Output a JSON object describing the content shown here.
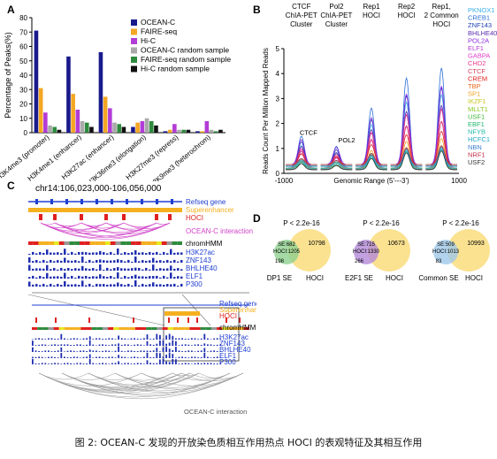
{
  "panels": {
    "a": "A",
    "b": "B",
    "c": "C",
    "d": "D"
  },
  "panel_a": {
    "chart_data": {
      "type": "bar",
      "ylabel": "Percentage of Peaks(%)",
      "ylim": [
        0,
        80
      ],
      "yticks": [
        "0",
        "10",
        "20",
        "30",
        "40",
        "50",
        "60",
        "70",
        "80"
      ],
      "categories": [
        "H3K4me3 (promoter)",
        "H3K4me1 (enhancer)",
        "H3K27ac (enhancer)",
        "H3K36me3 (elongation)",
        "H3K27me3 (repress)",
        "H3K9me3 (heterochrom)"
      ],
      "series": [
        {
          "name": "OCEAN-C",
          "color": "#1a1a8c",
          "values": [
            71,
            53,
            56,
            4,
            1,
            1
          ]
        },
        {
          "name": "FAIRE-seq",
          "color": "#f5a623",
          "values": [
            31,
            27,
            25,
            7,
            2,
            1
          ]
        },
        {
          "name": "Hi-C",
          "color": "#b23cd6",
          "values": [
            14,
            16,
            17,
            8,
            6,
            8
          ]
        },
        {
          "name": "OCEAN-C random sample",
          "color": "#a9a9a9",
          "values": [
            5,
            8,
            7,
            10,
            2,
            2
          ]
        },
        {
          "name": "FAIRE-seq random sample",
          "color": "#2e8b3e",
          "values": [
            4,
            7,
            6,
            8,
            2,
            1
          ]
        },
        {
          "name": "Hi-C random sample",
          "color": "#111111",
          "values": [
            2,
            4,
            4,
            5,
            2,
            2
          ]
        }
      ]
    }
  },
  "panel_b": {
    "chart_data": {
      "type": "line",
      "ylabel": "Reads Count Per Million Mapped Reads",
      "xlabel": "Genomic Range (5'---3')",
      "xticks": [
        "-1000",
        "1000"
      ],
      "ylim": [
        0,
        5
      ],
      "yticks": [
        "0",
        "1",
        "2",
        "3",
        "4",
        "5"
      ],
      "groups": [
        "CTCF ChIA-PET Cluster",
        "Pol2 ChIA-PET Cluster",
        "Rep1 HOCI",
        "Rep2 HOCI",
        "Rep1, 2 Common HOCI"
      ],
      "group_heights": [
        1.6,
        1.1,
        3.0,
        4.5,
        5.0
      ],
      "annotations": [
        "CTCF",
        "POL2"
      ],
      "factors": [
        {
          "name": "PKNOX1",
          "color": "#3ab0e8"
        },
        {
          "name": "CREB1",
          "color": "#2a6fd6"
        },
        {
          "name": "ZNF143",
          "color": "#1f3fb8"
        },
        {
          "name": "BHLHE40",
          "color": "#5a2bb0"
        },
        {
          "name": "POL2A",
          "color": "#8a2be2"
        },
        {
          "name": "ELF1",
          "color": "#b23cd6"
        },
        {
          "name": "GABPA",
          "color": "#e040c8"
        },
        {
          "name": "CHD2",
          "color": "#e83a8a"
        },
        {
          "name": "CTCF",
          "color": "#d64060"
        },
        {
          "name": "CREM",
          "color": "#e02020"
        },
        {
          "name": "TBP",
          "color": "#e86a20"
        },
        {
          "name": "SP1",
          "color": "#f0a020"
        },
        {
          "name": "IKZF1",
          "color": "#c8c820"
        },
        {
          "name": "MLLT1",
          "color": "#8ac820"
        },
        {
          "name": "USF1",
          "color": "#3ab83a"
        },
        {
          "name": "EBF1",
          "color": "#20b870"
        },
        {
          "name": "NFYB",
          "color": "#20b8a8"
        },
        {
          "name": "HCFC1",
          "color": "#20a8c8"
        },
        {
          "name": "NBN",
          "color": "#4080d0"
        },
        {
          "name": "NRF1",
          "color": "#c0304a"
        },
        {
          "name": "USF2",
          "color": "#333333"
        }
      ]
    }
  },
  "panel_c": {
    "region": "chr14:106,023,000-106,056,000",
    "top_tracks": {
      "refseq": "Refseq gene",
      "superenhancer": "Superenhancer",
      "hoci": "HOCI",
      "interaction": "OCEAN-C interaction",
      "chromhmm": "chromHMM",
      "marks": [
        "H3K27ac",
        "ZNF143",
        "BHLHE40",
        "ELF1",
        "P300"
      ]
    },
    "bottom_tracks": {
      "refseq": "Refseq gene",
      "superenhancer": "Superenhancer",
      "hoci": "HOCI",
      "chromhmm": "chromHMM",
      "marks": [
        "H3K27ac",
        "ZNF143",
        "BHLHE40",
        "ELF1",
        "P300"
      ],
      "interaction": "OCEAN-C interaction"
    },
    "colors": {
      "refseq": "#1f3fd0",
      "superenhancer": "#f5b020",
      "hoci": "#e02020",
      "interaction": "#d040c8",
      "signal": "#1f2fb0"
    }
  },
  "panel_d": {
    "venns": [
      {
        "pvalue": "P < 2.2e-16",
        "se_label": "DP1 SE",
        "hoci_label": "HOCI",
        "se_only": "198",
        "overlap": "SE:682 HOCI:1205",
        "hoci_only": "10798",
        "se_color": "#8fd08f"
      },
      {
        "pvalue": "P < 2.2e-16",
        "se_label": "E2F1 SE",
        "hoci_label": "HOCI",
        "se_only": "266",
        "overlap": "SE:715 HOCI:1330",
        "hoci_only": "10673",
        "se_color": "#b48ad8"
      },
      {
        "pvalue": "P < 2.2e-16",
        "se_label": "Common SE",
        "hoci_label": "HOCI",
        "se_only": "83",
        "overlap": "SE:509 HOCI:1013",
        "hoci_only": "10993",
        "se_color": "#9fc8e8"
      }
    ],
    "hoci_color": "#fbe08a"
  },
  "caption": "图 2:   OCEAN-C 发现的开放染色质相互作用热点 HOCI 的表观特征及其相互作用"
}
